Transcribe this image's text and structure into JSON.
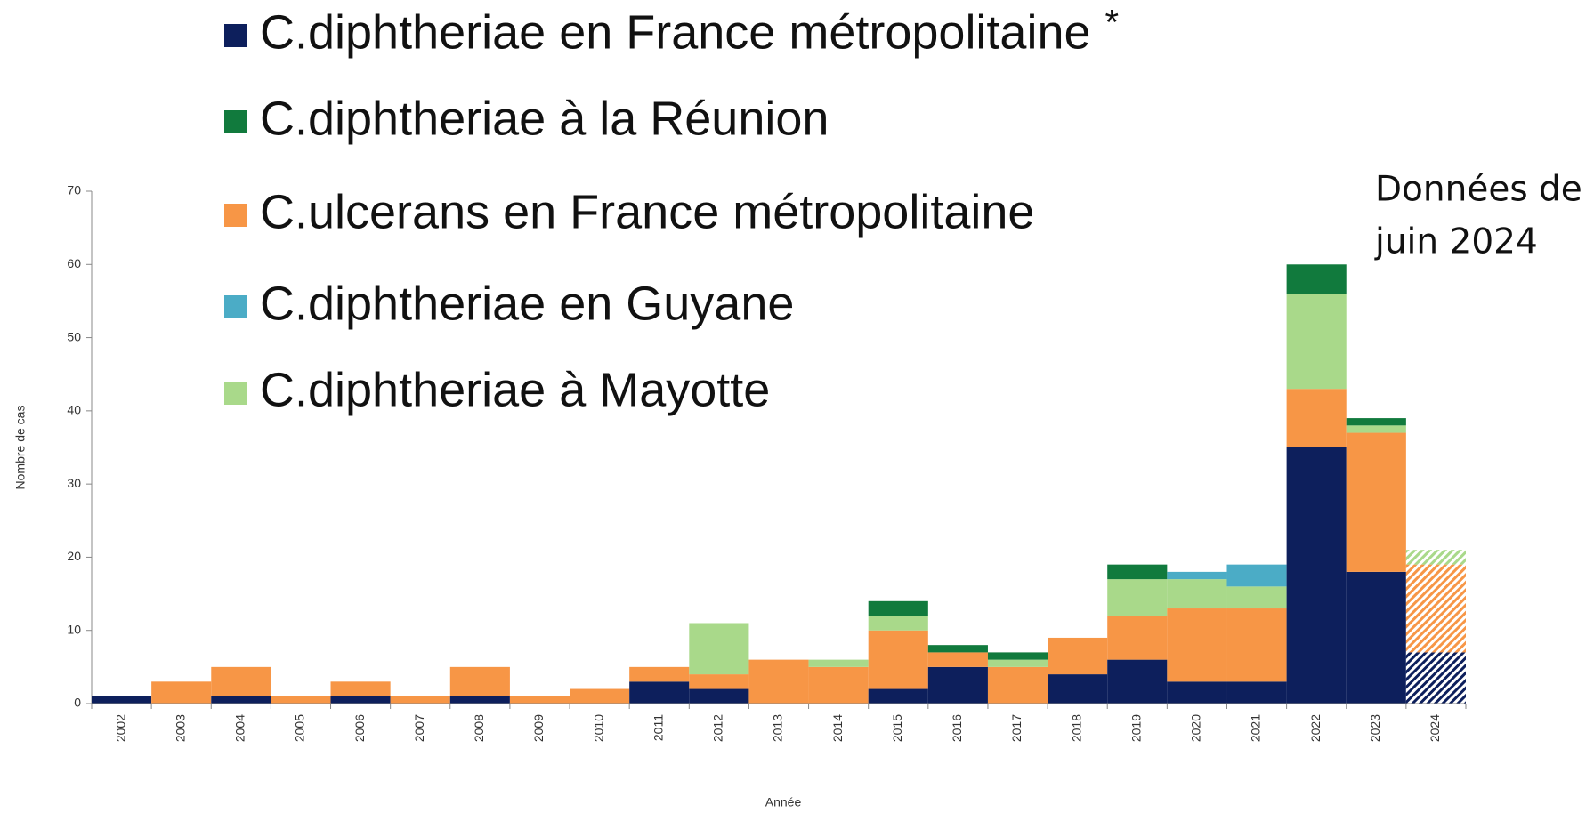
{
  "chart_data": {
    "type": "stacked_bar",
    "categories": [
      "2002",
      "2003",
      "2004",
      "2005",
      "2006",
      "2007",
      "2008",
      "2009",
      "2010",
      "2011",
      "2012",
      "2013",
      "2014",
      "2015",
      "2016",
      "2017",
      "2018",
      "2019",
      "2020",
      "2021",
      "2022",
      "2023",
      "2024"
    ],
    "series": [
      {
        "name": "C.diphtheriae en France métropolitaine",
        "color": "#0d1f5c",
        "values": [
          1,
          0,
          1,
          0,
          1,
          0,
          1,
          0,
          0,
          3,
          2,
          0,
          0,
          2,
          5,
          0,
          4,
          6,
          3,
          3,
          35,
          18,
          7
        ]
      },
      {
        "name": "C.diphtheriae à la Réunion",
        "color": "#117a3d",
        "values": [
          0,
          0,
          0,
          0,
          0,
          0,
          0,
          0,
          0,
          0,
          0,
          0,
          0,
          2,
          1,
          1,
          0,
          2,
          0,
          0,
          4,
          1,
          0
        ]
      },
      {
        "name": "C.ulcerans en France métropolitaine",
        "color": "#f79646",
        "values": [
          0,
          3,
          4,
          1,
          2,
          1,
          4,
          1,
          2,
          2,
          2,
          6,
          5,
          8,
          2,
          5,
          5,
          6,
          10,
          10,
          8,
          19,
          12
        ]
      },
      {
        "name": "C.diphtheriae en Guyane",
        "color": "#4bacc6",
        "values": [
          0,
          0,
          0,
          0,
          0,
          0,
          0,
          0,
          0,
          0,
          0,
          0,
          0,
          0,
          0,
          0,
          0,
          0,
          1,
          3,
          0,
          0,
          0
        ]
      },
      {
        "name": "C.diphtheriae à Mayotte",
        "color": "#a9d98a",
        "values": [
          0,
          0,
          0,
          0,
          0,
          0,
          0,
          0,
          0,
          0,
          7,
          0,
          1,
          2,
          0,
          1,
          0,
          5,
          4,
          3,
          13,
          1,
          2
        ]
      }
    ],
    "stack_order": [
      0,
      2,
      4,
      3,
      1
    ],
    "hatch_last": true,
    "legend_note": "*",
    "annotation": [
      "Données de",
      "juin 2024"
    ],
    "xlabel": "Année",
    "ylabel": "Nombre de cas",
    "ylim": [
      0,
      70
    ],
    "yticks": [
      0,
      10,
      20,
      30,
      40,
      50,
      60,
      70
    ]
  }
}
